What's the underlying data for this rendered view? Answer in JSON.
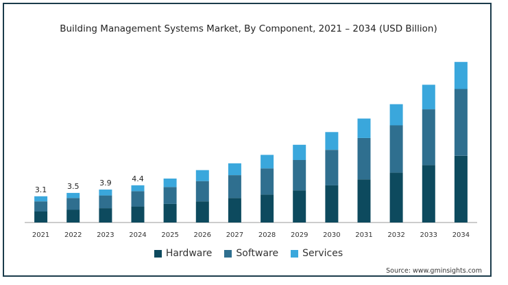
{
  "chart_data": {
    "type": "bar",
    "stacked": true,
    "title": "Building Management Systems Market, By Component, 2021 – 2034 (USD Billion)",
    "categories": [
      "2021",
      "2022",
      "2023",
      "2024",
      "2025",
      "2026",
      "2027",
      "2028",
      "2029",
      "2030",
      "2031",
      "2032",
      "2033",
      "2034"
    ],
    "series": [
      {
        "name": "Hardware",
        "color": "#0d4a5e",
        "values": [
          1.3,
          1.5,
          1.7,
          1.9,
          2.2,
          2.5,
          2.9,
          3.3,
          3.8,
          4.4,
          5.1,
          5.9,
          6.8,
          7.9
        ]
      },
      {
        "name": "Software",
        "color": "#2f6f8f",
        "values": [
          1.2,
          1.4,
          1.5,
          1.8,
          2.0,
          2.4,
          2.7,
          3.1,
          3.6,
          4.2,
          4.9,
          5.6,
          6.6,
          7.9
        ]
      },
      {
        "name": "Services",
        "color": "#3aa7dc",
        "values": [
          0.6,
          0.6,
          0.7,
          0.7,
          1.0,
          1.3,
          1.4,
          1.6,
          1.8,
          2.1,
          2.3,
          2.5,
          2.9,
          3.2
        ]
      }
    ],
    "data_labels": {
      "2021": "3.1",
      "2022": "3.5",
      "2023": "3.9",
      "2024": "4.4"
    },
    "ylim": [
      0,
      19.5
    ],
    "grid": false,
    "legend": "bottom"
  },
  "source": "Source: www.gminsights.com"
}
